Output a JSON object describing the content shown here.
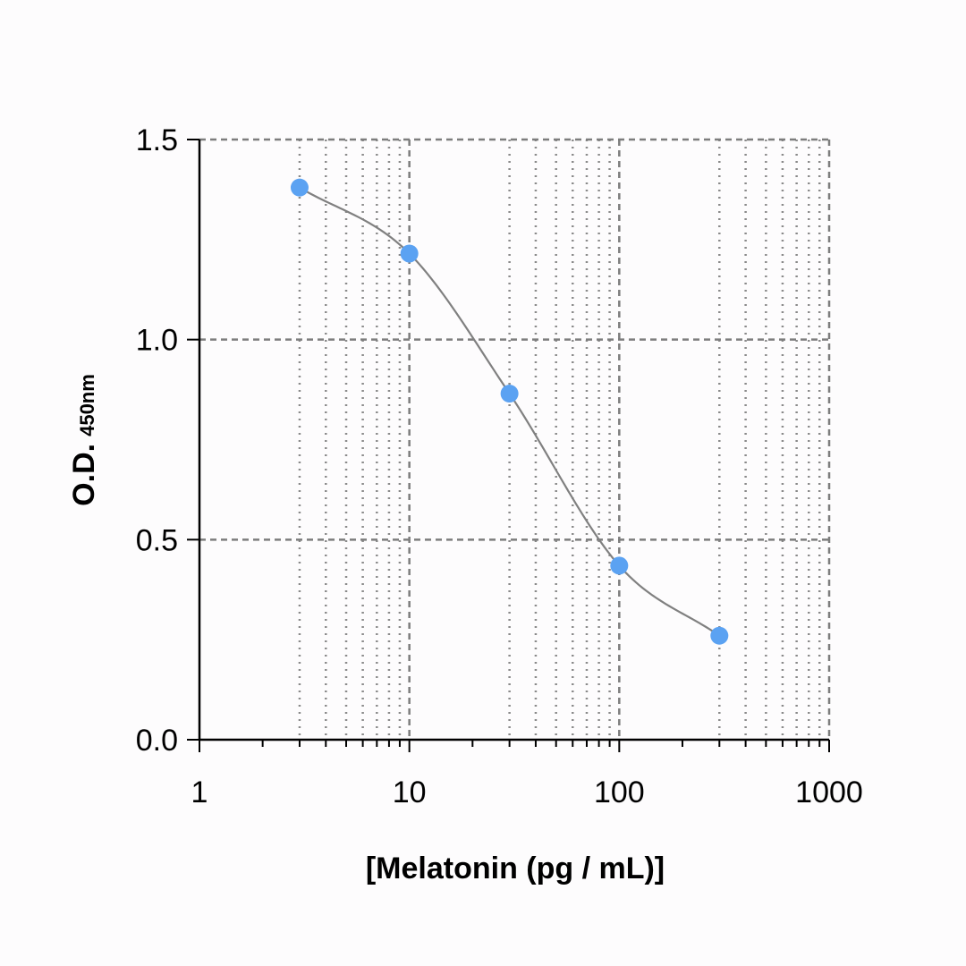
{
  "chart_data": {
    "type": "scatter",
    "title": "",
    "xlabel": "[Melatonin (pg / mL)]",
    "ylabel": "O.D.",
    "ylabel_subscript": "450nm",
    "xscale": "log",
    "xlim": [
      1,
      1000
    ],
    "ylim": [
      0,
      1.5
    ],
    "x_ticks": [
      1,
      10,
      100,
      1000
    ],
    "x_tick_labels": [
      "1",
      "10",
      "100",
      "1000"
    ],
    "y_ticks": [
      0,
      0.5,
      1.0,
      1.5
    ],
    "y_tick_labels": [
      "0.0",
      "0.5",
      "1.0",
      "1.5"
    ],
    "grid": true,
    "legend": "none",
    "series": [
      {
        "x": [
          3,
          10,
          30,
          100,
          300
        ],
        "y": [
          1.38,
          1.215,
          0.865,
          0.435,
          0.26
        ],
        "marker_color": "#5ba2f2",
        "fit_curve": "4PL",
        "fit_color": "#808080"
      }
    ]
  }
}
